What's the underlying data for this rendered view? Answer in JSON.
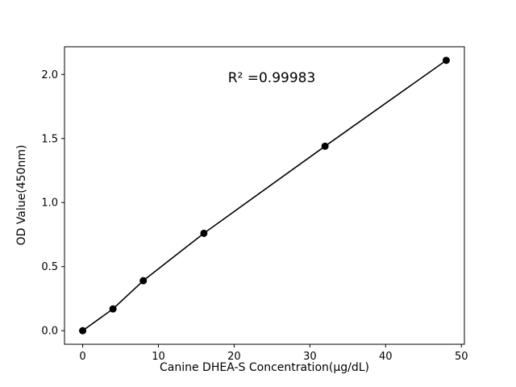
{
  "chart_data": {
    "type": "line",
    "x": [
      0,
      4,
      8,
      16,
      32,
      48
    ],
    "y": [
      0.0,
      0.17,
      0.39,
      0.76,
      1.44,
      2.11
    ],
    "xlabel": "Canine DHEA-S Concentration(μg/dL)",
    "ylabel": "OD Value(450nm)",
    "annotation": "R² =0.99983",
    "annotation_xy": [
      25,
      1.97
    ],
    "xlim": [
      -2.4,
      50.4
    ],
    "ylim": [
      -0.106,
      2.216
    ],
    "xticks": [
      0,
      10,
      20,
      30,
      40,
      50
    ],
    "xtick_labels": [
      "0",
      "10",
      "20",
      "30",
      "40",
      "50"
    ],
    "yticks": [
      0.0,
      0.5,
      1.0,
      1.5,
      2.0
    ],
    "ytick_labels": [
      "0.0",
      "0.5",
      "1.0",
      "1.5",
      "2.0"
    ],
    "legend": null,
    "grid": false,
    "line_color": "#000000",
    "marker_color": "#000000",
    "background": "#ffffff"
  }
}
